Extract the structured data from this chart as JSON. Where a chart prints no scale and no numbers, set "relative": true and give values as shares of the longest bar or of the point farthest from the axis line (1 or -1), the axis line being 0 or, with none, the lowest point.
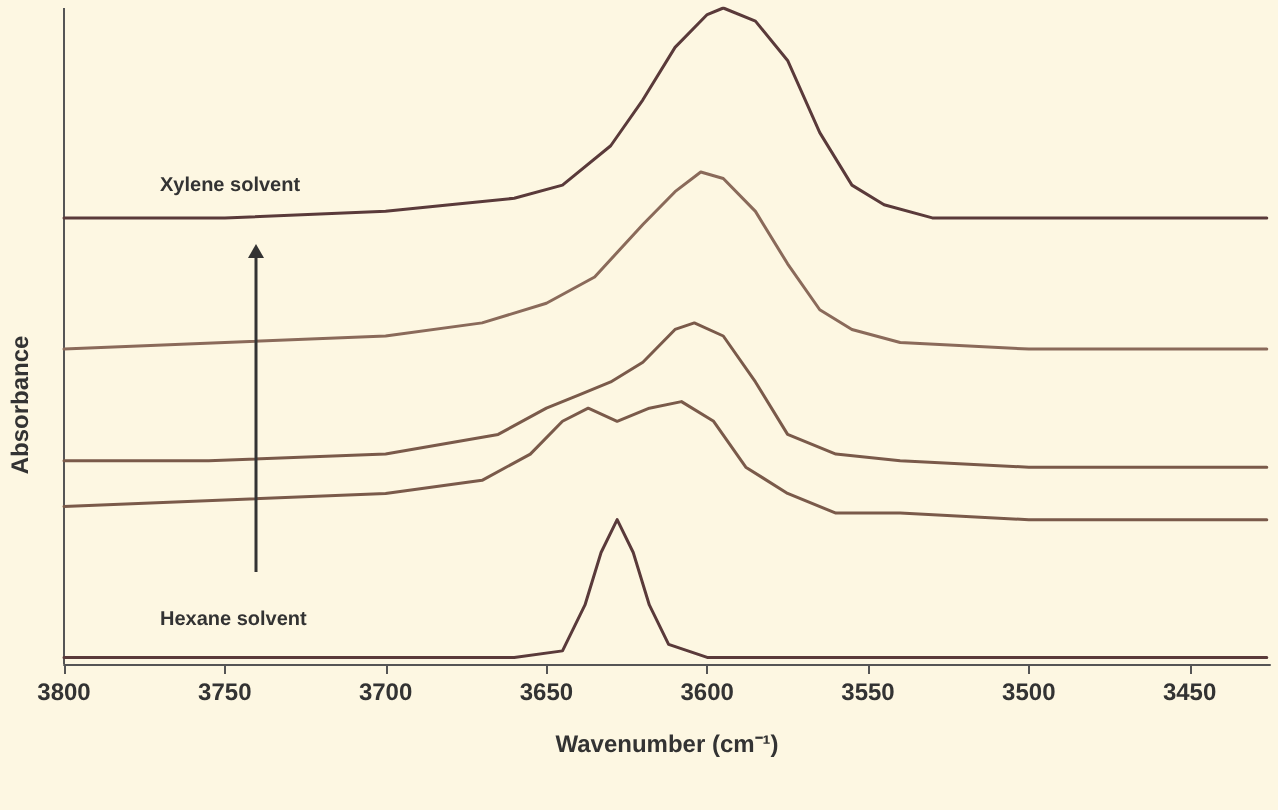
{
  "chart_data": {
    "type": "line",
    "relative": true,
    "xlabel": "Wavenumber (cm⁻¹)",
    "ylabel": "Absorbance",
    "xlim": [
      3800,
      3425
    ],
    "xticks": [
      3800,
      3750,
      3700,
      3650,
      3600,
      3550,
      3500,
      3450
    ],
    "grid": false,
    "marker": "none",
    "line_style": "solid",
    "annotations": [
      "Xylene solvent",
      "Hexane solvent"
    ],
    "series": [
      {
        "color": "#5a3a3a",
        "x": [
          3800,
          3750,
          3700,
          3680,
          3660,
          3645,
          3630,
          3620,
          3610,
          3600,
          3595,
          3585,
          3575,
          3565,
          3555,
          3545,
          3530,
          3500,
          3450,
          3426
        ],
        "values": [
          0.68,
          0.68,
          0.69,
          0.7,
          0.71,
          0.73,
          0.79,
          0.86,
          0.94,
          0.99,
          1.0,
          0.98,
          0.92,
          0.81,
          0.73,
          0.7,
          0.68,
          0.68,
          0.68,
          0.68
        ]
      },
      {
        "color": "#8a6a5a",
        "x": [
          3800,
          3750,
          3700,
          3670,
          3650,
          3635,
          3620,
          3610,
          3602,
          3595,
          3585,
          3575,
          3565,
          3555,
          3540,
          3500,
          3450,
          3426
        ],
        "values": [
          0.48,
          0.49,
          0.5,
          0.52,
          0.55,
          0.59,
          0.67,
          0.72,
          0.75,
          0.74,
          0.69,
          0.61,
          0.54,
          0.51,
          0.49,
          0.48,
          0.48,
          0.48
        ]
      },
      {
        "color": "#7a5a4a",
        "x": [
          3800,
          3755,
          3700,
          3665,
          3650,
          3640,
          3630,
          3620,
          3610,
          3604,
          3595,
          3585,
          3575,
          3560,
          3540,
          3500,
          3426
        ],
        "values": [
          0.31,
          0.31,
          0.32,
          0.35,
          0.39,
          0.41,
          0.43,
          0.46,
          0.51,
          0.52,
          0.5,
          0.43,
          0.35,
          0.32,
          0.31,
          0.3,
          0.3
        ]
      },
      {
        "color": "#7a5a4a",
        "x": [
          3800,
          3750,
          3700,
          3670,
          3655,
          3645,
          3637,
          3628,
          3618,
          3608,
          3598,
          3588,
          3575,
          3560,
          3540,
          3500,
          3426
        ],
        "values": [
          0.24,
          0.25,
          0.26,
          0.28,
          0.32,
          0.37,
          0.39,
          0.37,
          0.39,
          0.4,
          0.37,
          0.3,
          0.26,
          0.23,
          0.23,
          0.22,
          0.22
        ]
      },
      {
        "color": "#5a3a3a",
        "x": [
          3800,
          3750,
          3700,
          3660,
          3645,
          3638,
          3633,
          3628,
          3623,
          3618,
          3612,
          3600,
          3550,
          3500,
          3426
        ],
        "values": [
          0.01,
          0.01,
          0.01,
          0.01,
          0.02,
          0.09,
          0.17,
          0.22,
          0.17,
          0.09,
          0.03,
          0.01,
          0.01,
          0.01,
          0.01
        ]
      }
    ]
  }
}
